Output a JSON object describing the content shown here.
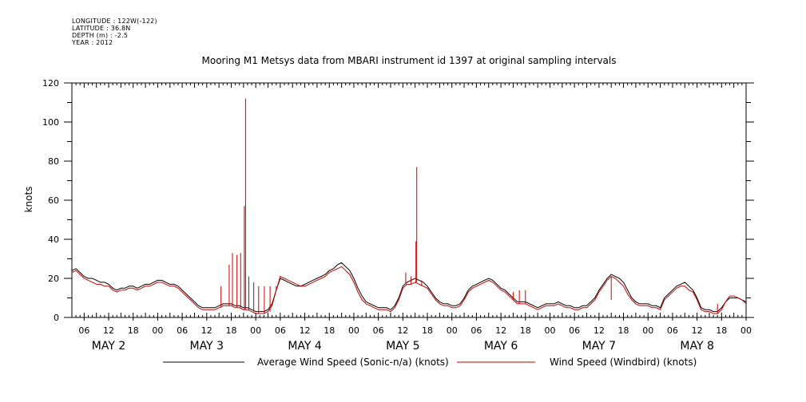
{
  "meta": {
    "longitude": "LONGITUDE : 122W(-122)",
    "latitude": "LATITUDE : 36.8N",
    "depth": "DEPTH (m) : -2.5",
    "year": "YEAR : 2012"
  },
  "chart_data": {
    "type": "line",
    "title": "Mooring M1 Metsys data from MBARI instrument id 1397 at original sampling intervals",
    "ylabel": "knots",
    "xlabel": "",
    "ylim": [
      0,
      120
    ],
    "xlim_hours": [
      0,
      165
    ],
    "y_ticks": [
      0,
      20,
      40,
      60,
      80,
      100,
      120
    ],
    "x_hour_ticks": [
      {
        "h": 3,
        "label": "06"
      },
      {
        "h": 9,
        "label": "12"
      },
      {
        "h": 15,
        "label": "18"
      },
      {
        "h": 21,
        "label": "00"
      },
      {
        "h": 27,
        "label": "06"
      },
      {
        "h": 33,
        "label": "12"
      },
      {
        "h": 39,
        "label": "18"
      },
      {
        "h": 45,
        "label": "00"
      },
      {
        "h": 51,
        "label": "06"
      },
      {
        "h": 57,
        "label": "12"
      },
      {
        "h": 63,
        "label": "18"
      },
      {
        "h": 69,
        "label": "00"
      },
      {
        "h": 75,
        "label": "06"
      },
      {
        "h": 81,
        "label": "12"
      },
      {
        "h": 87,
        "label": "18"
      },
      {
        "h": 93,
        "label": "00"
      },
      {
        "h": 99,
        "label": "06"
      },
      {
        "h": 105,
        "label": "12"
      },
      {
        "h": 111,
        "label": "18"
      },
      {
        "h": 117,
        "label": "00"
      },
      {
        "h": 123,
        "label": "06"
      },
      {
        "h": 129,
        "label": "12"
      },
      {
        "h": 135,
        "label": "18"
      },
      {
        "h": 141,
        "label": "00"
      },
      {
        "h": 147,
        "label": "06"
      },
      {
        "h": 153,
        "label": "12"
      },
      {
        "h": 159,
        "label": "18"
      },
      {
        "h": 165,
        "label": "00"
      }
    ],
    "day_labels": [
      {
        "h": 9,
        "label": "MAY  2"
      },
      {
        "h": 33,
        "label": "MAY  3"
      },
      {
        "h": 57,
        "label": "MAY  4"
      },
      {
        "h": 81,
        "label": "MAY  5"
      },
      {
        "h": 105,
        "label": "MAY  6"
      },
      {
        "h": 129,
        "label": "MAY  7"
      },
      {
        "h": 153,
        "label": "MAY  8"
      }
    ],
    "legend_position": "bottom",
    "series": [
      {
        "name": "Average Wind Speed (Sonic-n/a) (knots)",
        "color": "#000000",
        "x": [
          0,
          1,
          2,
          3,
          4,
          5,
          6,
          7,
          8,
          9,
          10,
          11,
          12,
          13,
          14,
          15,
          16,
          17,
          18,
          19,
          20,
          21,
          22,
          23,
          24,
          25,
          26,
          27,
          28,
          29,
          30,
          31,
          32,
          33,
          34,
          35,
          36,
          37,
          38,
          39,
          40,
          41,
          42,
          43,
          44,
          45,
          46,
          47,
          48,
          49,
          50,
          51,
          52,
          53,
          54,
          55,
          56,
          57,
          58,
          59,
          60,
          61,
          62,
          63,
          64,
          65,
          66,
          67,
          68,
          69,
          70,
          71,
          72,
          73,
          74,
          75,
          76,
          77,
          78,
          79,
          80,
          81,
          82,
          83,
          84,
          85,
          86,
          87,
          88,
          89,
          90,
          91,
          92,
          93,
          94,
          95,
          96,
          97,
          98,
          99,
          100,
          101,
          102,
          103,
          104,
          105,
          106,
          107,
          108,
          109,
          110,
          111,
          112,
          113,
          114,
          115,
          116,
          117,
          118,
          119,
          120,
          121,
          122,
          123,
          124,
          125,
          126,
          127,
          128,
          129,
          130,
          131,
          132,
          133,
          134,
          135,
          136,
          137,
          138,
          139,
          140,
          141,
          142,
          143,
          144,
          145,
          146,
          147,
          148,
          149,
          150,
          151,
          152,
          153,
          154,
          155,
          156,
          157,
          158,
          159,
          160,
          161,
          162,
          163,
          164,
          165
        ],
        "y": [
          24,
          25,
          23,
          21,
          20,
          20,
          19,
          18,
          18,
          17,
          15,
          14,
          15,
          15,
          16,
          16,
          15,
          16,
          17,
          17,
          18,
          19,
          19,
          18,
          17,
          17,
          16,
          14,
          12,
          10,
          8,
          6,
          5,
          5,
          5,
          5,
          6,
          7,
          7,
          7,
          6,
          6,
          5,
          5,
          4,
          3,
          3,
          3,
          4,
          7,
          14,
          20,
          19,
          18,
          17,
          16,
          16,
          17,
          18,
          19,
          20,
          21,
          22,
          24,
          25,
          27,
          28,
          26,
          24,
          20,
          15,
          11,
          8,
          7,
          6,
          5,
          5,
          5,
          4,
          6,
          10,
          16,
          18,
          19,
          20,
          19,
          18,
          16,
          13,
          10,
          8,
          7,
          7,
          6,
          6,
          7,
          10,
          14,
          16,
          17,
          18,
          19,
          20,
          19,
          17,
          15,
          14,
          12,
          10,
          8,
          8,
          8,
          7,
          6,
          5,
          6,
          7,
          7,
          7,
          8,
          7,
          6,
          6,
          5,
          5,
          6,
          6,
          8,
          10,
          14,
          17,
          20,
          22,
          21,
          20,
          18,
          14,
          10,
          8,
          7,
          7,
          7,
          6,
          6,
          5,
          10,
          12,
          14,
          16,
          17,
          18,
          16,
          14,
          10,
          5,
          4,
          4,
          3,
          3,
          5,
          8,
          10,
          10,
          10,
          9,
          8
        ]
      },
      {
        "name": "Wind Speed (Windbird) (knots)",
        "color": "#cc0000",
        "x": [
          0,
          1,
          2,
          3,
          4,
          5,
          6,
          7,
          8,
          9,
          10,
          11,
          12,
          13,
          14,
          15,
          16,
          17,
          18,
          19,
          20,
          21,
          22,
          23,
          24,
          25,
          26,
          27,
          28,
          29,
          30,
          31,
          32,
          33,
          34,
          35,
          36,
          37,
          38,
          39,
          40,
          41,
          42,
          43,
          44,
          45,
          46,
          47,
          48,
          49,
          50,
          51,
          52,
          53,
          54,
          55,
          56,
          57,
          58,
          59,
          60,
          61,
          62,
          63,
          64,
          65,
          66,
          67,
          68,
          69,
          70,
          71,
          72,
          73,
          74,
          75,
          76,
          77,
          78,
          79,
          80,
          81,
          82,
          83,
          84,
          85,
          86,
          87,
          88,
          89,
          90,
          91,
          92,
          93,
          94,
          95,
          96,
          97,
          98,
          99,
          100,
          101,
          102,
          103,
          104,
          105,
          106,
          107,
          108,
          109,
          110,
          111,
          112,
          113,
          114,
          115,
          116,
          117,
          118,
          119,
          120,
          121,
          122,
          123,
          124,
          125,
          126,
          127,
          128,
          129,
          130,
          131,
          132,
          133,
          134,
          135,
          136,
          137,
          138,
          139,
          140,
          141,
          142,
          143,
          144,
          145,
          146,
          147,
          148,
          149,
          150,
          151,
          152,
          153,
          154,
          155,
          156,
          157,
          158,
          159,
          160,
          161,
          162,
          163,
          164,
          165
        ],
        "y": [
          23,
          24,
          22,
          20,
          19,
          18,
          17,
          17,
          16,
          16,
          14,
          13,
          14,
          14,
          15,
          15,
          14,
          15,
          16,
          16,
          17,
          18,
          18,
          17,
          16,
          16,
          15,
          13,
          11,
          9,
          7,
          5,
          4,
          4,
          4,
          4,
          5,
          6,
          6,
          6,
          5,
          5,
          4,
          4,
          3,
          2,
          2,
          2,
          3,
          6,
          14,
          21,
          20,
          19,
          18,
          17,
          16,
          16,
          17,
          18,
          19,
          20,
          21,
          23,
          24,
          25,
          26,
          24,
          22,
          18,
          13,
          9,
          7,
          6,
          5,
          4,
          4,
          4,
          3,
          5,
          9,
          15,
          17,
          17,
          18,
          17,
          16,
          15,
          12,
          9,
          7,
          6,
          6,
          5,
          5,
          6,
          9,
          13,
          15,
          16,
          17,
          18,
          19,
          18,
          16,
          14,
          13,
          11,
          9,
          7,
          7,
          7,
          6,
          5,
          4,
          5,
          6,
          6,
          6,
          7,
          6,
          5,
          5,
          4,
          4,
          5,
          5,
          7,
          9,
          13,
          16,
          19,
          21,
          20,
          18,
          16,
          12,
          9,
          7,
          6,
          6,
          6,
          5,
          5,
          4,
          9,
          11,
          13,
          15,
          16,
          16,
          14,
          13,
          9,
          4,
          3,
          3,
          2,
          2,
          4,
          8,
          11,
          11,
          10,
          9,
          7
        ]
      }
    ],
    "spikes": [
      {
        "x": 36.5,
        "y": 16
      },
      {
        "x": 38.5,
        "y": 27
      },
      {
        "x": 39.3,
        "y": 33
      },
      {
        "x": 40.4,
        "y": 32
      },
      {
        "x": 41.3,
        "y": 33
      },
      {
        "x": 42.2,
        "y": 57
      },
      {
        "x": 42.5,
        "y": 112
      },
      {
        "x": 43.3,
        "y": 21
      },
      {
        "x": 44.5,
        "y": 18
      },
      {
        "x": 45.7,
        "y": 16
      },
      {
        "x": 47.1,
        "y": 16
      },
      {
        "x": 48.5,
        "y": 16
      },
      {
        "x": 50.0,
        "y": 16
      },
      {
        "x": 81.7,
        "y": 23
      },
      {
        "x": 83.0,
        "y": 21
      },
      {
        "x": 84.2,
        "y": 39
      },
      {
        "x": 84.4,
        "y": 77
      },
      {
        "x": 85.6,
        "y": 19
      },
      {
        "x": 86.6,
        "y": 15
      },
      {
        "x": 108.0,
        "y": 13
      },
      {
        "x": 109.5,
        "y": 14
      },
      {
        "x": 111.0,
        "y": 14
      },
      {
        "x": 132.0,
        "y": 9
      },
      {
        "x": 158.0,
        "y": 7
      }
    ]
  }
}
